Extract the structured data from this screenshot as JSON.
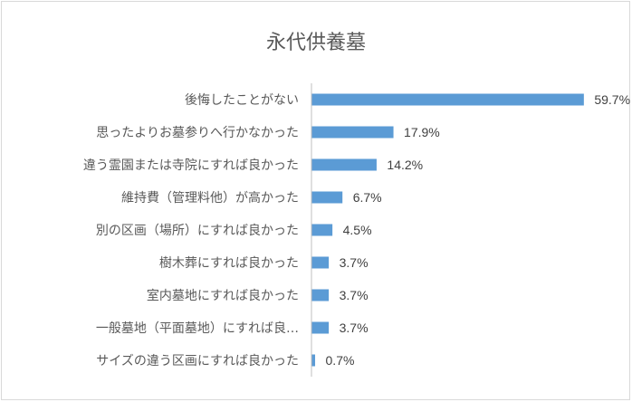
{
  "chart_data": {
    "type": "bar",
    "orientation": "horizontal",
    "title": "永代供養墓",
    "categories": [
      "後悔したことがない",
      "思ったよりお墓参りへ行かなかった",
      "違う霊園または寺院にすれば良かった",
      "維持費（管理料他）が高かった",
      "別の区画（場所）にすれば良かった",
      "樹木葬にすれば良かった",
      "室内墓地にすれば良かった",
      "一般墓地（平面墓地）にすれば良…",
      "サイズの違う区画にすれば良かった"
    ],
    "values": [
      59.7,
      17.9,
      14.2,
      6.7,
      4.5,
      3.7,
      3.7,
      3.7,
      0.7
    ],
    "value_labels": [
      "59.7%",
      "17.9%",
      "14.2%",
      "6.7%",
      "4.5%",
      "3.7%",
      "3.7%",
      "3.7%",
      "0.7%"
    ],
    "unit": "%",
    "xlim": [
      0,
      65
    ],
    "grid": false,
    "legend": "none",
    "colors": {
      "bar": "#5b9bd5",
      "axis": "#bfbfbf",
      "frame": "#d9d9d9",
      "text": "#595959"
    }
  }
}
